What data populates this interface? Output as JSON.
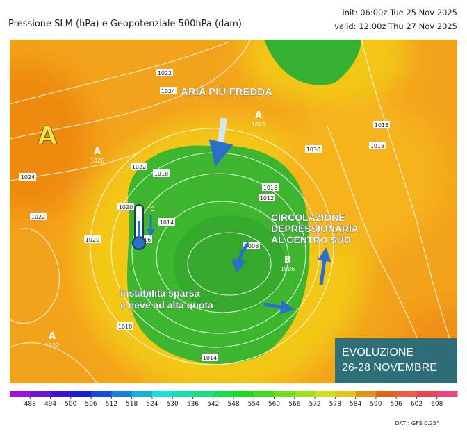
{
  "header": {
    "title": "Pressione SLM (hPa) e Geopotenziale 500hPa (dam)",
    "init": "init: 06:00z Tue 25 Nov 2025",
    "valid": "valid: 12:00z Thu 27 Nov 2025"
  },
  "map": {
    "high_label": "A",
    "pressure_centers": [
      {
        "letter": "A",
        "value": 1026
      },
      {
        "letter": "A",
        "value": 1022
      },
      {
        "letter": "B",
        "value": 1006
      },
      {
        "letter": "A",
        "value": 1022
      }
    ],
    "isobar_labels": [
      1024,
      1022,
      1024,
      1022,
      1020,
      1018,
      1016,
      1014,
      1012,
      1008,
      1016,
      1018,
      1016,
      1020,
      1022,
      1018,
      1014,
      1030
    ],
    "thermometer_unit": "°C"
  },
  "annotations": {
    "cold_air": "ARIA PIÙ FREDDA",
    "circulation": [
      "CIRCOLAZIONE",
      "DEPRESSIONARIA",
      "AL CENTRO SUD"
    ],
    "instability": [
      "instabilità sparsa",
      "e neve ad alta quota"
    ],
    "evolution": [
      "EVOLUZIONE",
      "26-28 NOVEMBRE"
    ]
  },
  "colorbar": {
    "ticks": [
      488,
      494,
      500,
      506,
      512,
      518,
      524,
      530,
      536,
      542,
      548,
      554,
      560,
      566,
      572,
      578,
      584,
      590,
      596,
      602,
      608
    ]
  },
  "footer": {
    "source": "DATI: GFS 0.25°"
  }
}
